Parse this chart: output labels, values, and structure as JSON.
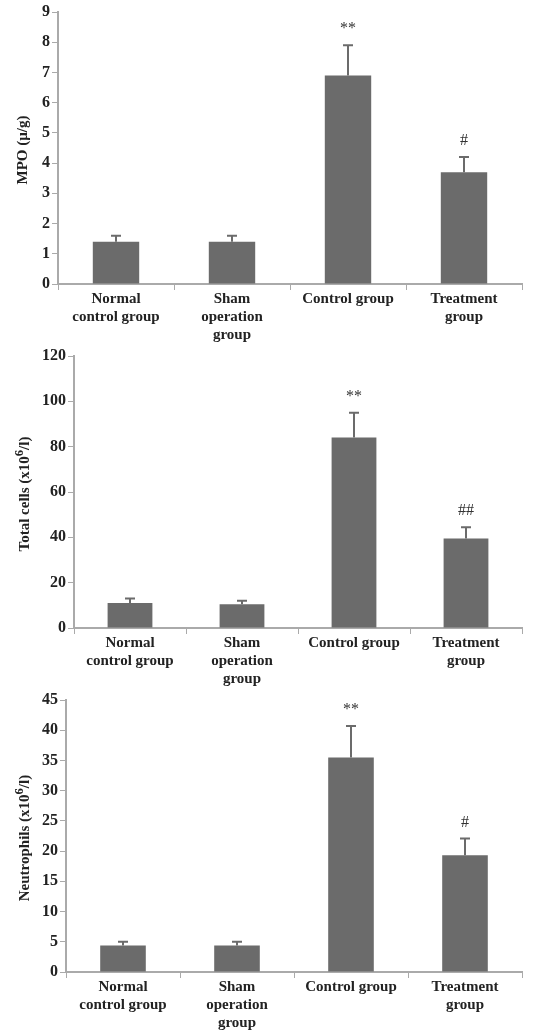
{
  "chart_data": [
    {
      "type": "bar",
      "ylabel": "MPO (µ/g)",
      "categories": [
        "Normal control group",
        "Sham operation group",
        "Control group",
        "Treatment group"
      ],
      "series": [
        {
          "color": "#6b6b6b",
          "values": [
            1.4,
            1.4,
            6.9,
            3.7
          ],
          "errors": [
            [
              1.4,
              1.6
            ],
            [
              1.4,
              1.6
            ],
            [
              6.9,
              7.9
            ],
            [
              3.7,
              4.2
            ]
          ]
        }
      ],
      "ylim": [
        0,
        9
      ],
      "yticks": [
        0,
        1,
        2,
        3,
        4,
        5,
        6,
        7,
        8,
        9
      ],
      "grid": false,
      "legend": false,
      "annotations": [
        "**",
        "#"
      ]
    },
    {
      "type": "bar",
      "ylabel": "Total cells (x10$^{6}$/l)",
      "categories": [
        "Normal control group",
        "Sham operation group",
        "Control group",
        "Treatment group"
      ],
      "series": [
        {
          "color": "#6b6b6b",
          "values": [
            11,
            10.5,
            84,
            39.5
          ],
          "errors": [
            [
              11,
              13
            ],
            [
              10.5,
              12
            ],
            [
              84,
              95
            ],
            [
              39.5,
              44.5
            ]
          ]
        }
      ],
      "ylim": [
        0,
        120
      ],
      "yticks": [
        0,
        20,
        40,
        60,
        80,
        100,
        120
      ],
      "grid": false,
      "legend": false,
      "annotations": [
        "**",
        "##"
      ]
    },
    {
      "type": "bar",
      "ylabel": "Neutrophils (x10$^{6}$/l)",
      "categories": [
        "Normal control group",
        "Sham operation group",
        "Control group",
        "Treatment group"
      ],
      "series": [
        {
          "color": "#6b6b6b",
          "values": [
            4.4,
            4.4,
            35.5,
            19.3
          ],
          "errors": [
            [
              4.4,
              5
            ],
            [
              4.4,
              5
            ],
            [
              35.5,
              40.7
            ],
            [
              19.3,
              22.1
            ]
          ]
        }
      ],
      "ylim": [
        0,
        45
      ],
      "yticks": [
        0,
        5,
        10,
        15,
        20,
        25,
        30,
        35,
        40,
        45
      ],
      "grid": false,
      "legend": false,
      "annotations": [
        "**",
        "#"
      ]
    }
  ]
}
